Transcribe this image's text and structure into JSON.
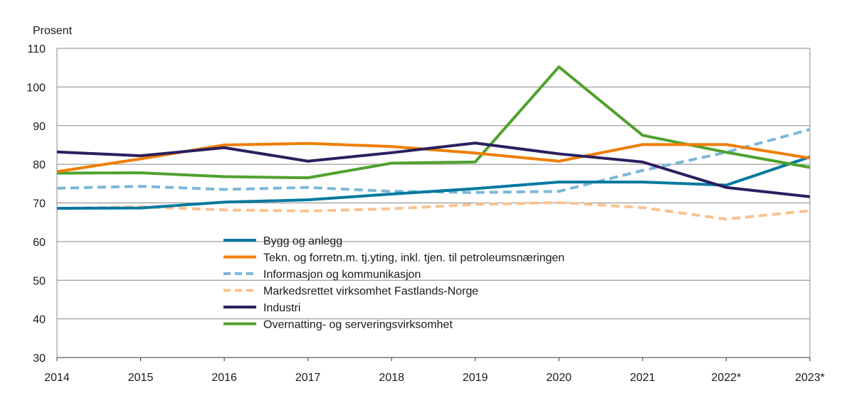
{
  "chart_data": {
    "type": "line",
    "ylabel": "Prosent",
    "ylim": [
      30,
      110
    ],
    "yticks": [
      30,
      40,
      50,
      60,
      70,
      80,
      90,
      100,
      110
    ],
    "grid": true,
    "legend": "inside-bottom-center",
    "categories": [
      "2014",
      "2015",
      "2016",
      "2017",
      "2018",
      "2019",
      "2020",
      "2021",
      "2022*",
      "2023*"
    ],
    "series": [
      {
        "name": "Bygg og anlegg",
        "color": "#0079a0",
        "dash": false,
        "values": [
          68.6,
          68.7,
          70.2,
          70.8,
          72.3,
          73.7,
          75.4,
          75.4,
          74.6,
          81.9
        ]
      },
      {
        "name": "Tekn. og forretn.m. tj.yting, inkl. tjen. til petroleumsnæringen",
        "color": "#f07d00",
        "dash": false,
        "values": [
          78.1,
          81.4,
          85.0,
          85.4,
          84.6,
          82.9,
          80.8,
          85.1,
          85.1,
          81.6
        ]
      },
      {
        "name": "Informasjon og kommunikasjon",
        "color": "#7ab8d8",
        "dash": true,
        "values": [
          73.8,
          74.3,
          73.5,
          74.0,
          73.0,
          72.7,
          73.0,
          78.4,
          83.1,
          89.0
        ]
      },
      {
        "name": "Markedsrettet virksomhet Fastlands-Norge",
        "color": "#fbc18e",
        "dash": true,
        "values": [
          68.6,
          69.0,
          68.2,
          67.9,
          68.5,
          69.6,
          70.1,
          68.8,
          65.8,
          68.0
        ]
      },
      {
        "name": "Industri",
        "color": "#2b1f5f",
        "dash": false,
        "values": [
          83.2,
          82.2,
          84.3,
          80.8,
          83.0,
          85.5,
          82.7,
          80.6,
          74.0,
          71.6
        ]
      },
      {
        "name": "Overnatting- og serveringsvirksomhet",
        "color": "#4fa22e",
        "dash": false,
        "values": [
          77.7,
          77.8,
          76.8,
          76.5,
          80.3,
          80.6,
          105.2,
          87.5,
          83.1,
          79.2
        ]
      }
    ]
  }
}
